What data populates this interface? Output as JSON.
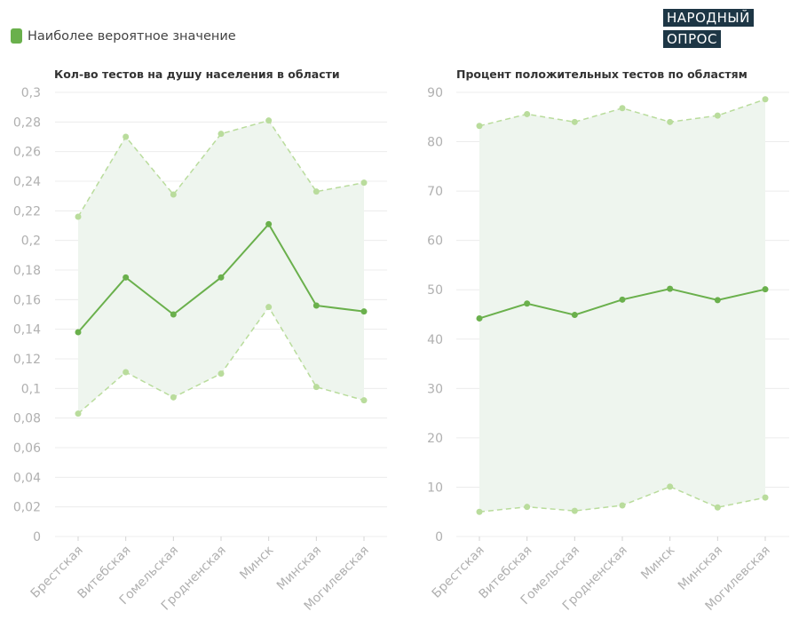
{
  "legend": {
    "label": "Наиболее вероятное значение",
    "color": "#6ab04c"
  },
  "logo": {
    "line1": "НАРОДНЫЙ",
    "line2": "ОПРОС"
  },
  "colors": {
    "main_line": "#6ab04c",
    "bound_line": "#b9dc9c",
    "band_fill": "#eef5ee",
    "grid": "#ececec",
    "tick_text": "#b0b0b0",
    "title_text": "#333333"
  },
  "chart_data": [
    {
      "type": "line",
      "title": "Кол-во тестов на душу населения в области",
      "categories": [
        "Брестская",
        "Витебская",
        "Гомельская",
        "Гродненская",
        "Минск",
        "Минская",
        "Могилевская"
      ],
      "series": [
        {
          "name": "Наиболее вероятное значение",
          "values": [
            0.138,
            0.175,
            0.15,
            0.175,
            0.211,
            0.156,
            0.152
          ]
        },
        {
          "values": [
            0.216,
            0.27,
            0.231,
            0.272,
            0.281,
            0.233,
            0.239
          ]
        },
        {
          "values": [
            0.083,
            0.111,
            0.094,
            0.11,
            0.155,
            0.101,
            0.092
          ]
        }
      ],
      "ylim": [
        0,
        0.3
      ],
      "yticks": [
        0,
        0.02,
        0.04,
        0.06,
        0.08,
        0.1,
        0.12,
        0.14,
        0.16,
        0.18,
        0.2,
        0.22,
        0.24,
        0.26,
        0.28,
        0.3
      ],
      "ytick_labels": [
        "0",
        "0,02",
        "0,04",
        "0,06",
        "0,08",
        "0,1",
        "0,12",
        "0,14",
        "0,16",
        "0,18",
        "0,2",
        "0,22",
        "0,24",
        "0,26",
        "0,28",
        "0,3"
      ],
      "grid": true
    },
    {
      "type": "line",
      "title": "Процент положительных тестов по областям",
      "categories": [
        "Брестская",
        "Витебская",
        "Гомельская",
        "Гродненская",
        "Минск",
        "Минская",
        "Могилевская"
      ],
      "series": [
        {
          "name": "Наиболее вероятное значение",
          "values": [
            44.2,
            47.2,
            44.9,
            48.0,
            50.2,
            47.9,
            50.1
          ]
        },
        {
          "values": [
            83.2,
            85.6,
            84.0,
            86.8,
            84.0,
            85.3,
            88.6
          ]
        },
        {
          "values": [
            5.0,
            6.0,
            5.2,
            6.3,
            10.1,
            5.9,
            7.9
          ]
        }
      ],
      "ylim": [
        0,
        90
      ],
      "yticks": [
        0,
        10,
        20,
        30,
        40,
        50,
        60,
        70,
        80,
        90
      ],
      "ytick_labels": [
        "0",
        "10",
        "20",
        "30",
        "40",
        "50",
        "60",
        "70",
        "80",
        "90"
      ],
      "grid": true
    }
  ]
}
